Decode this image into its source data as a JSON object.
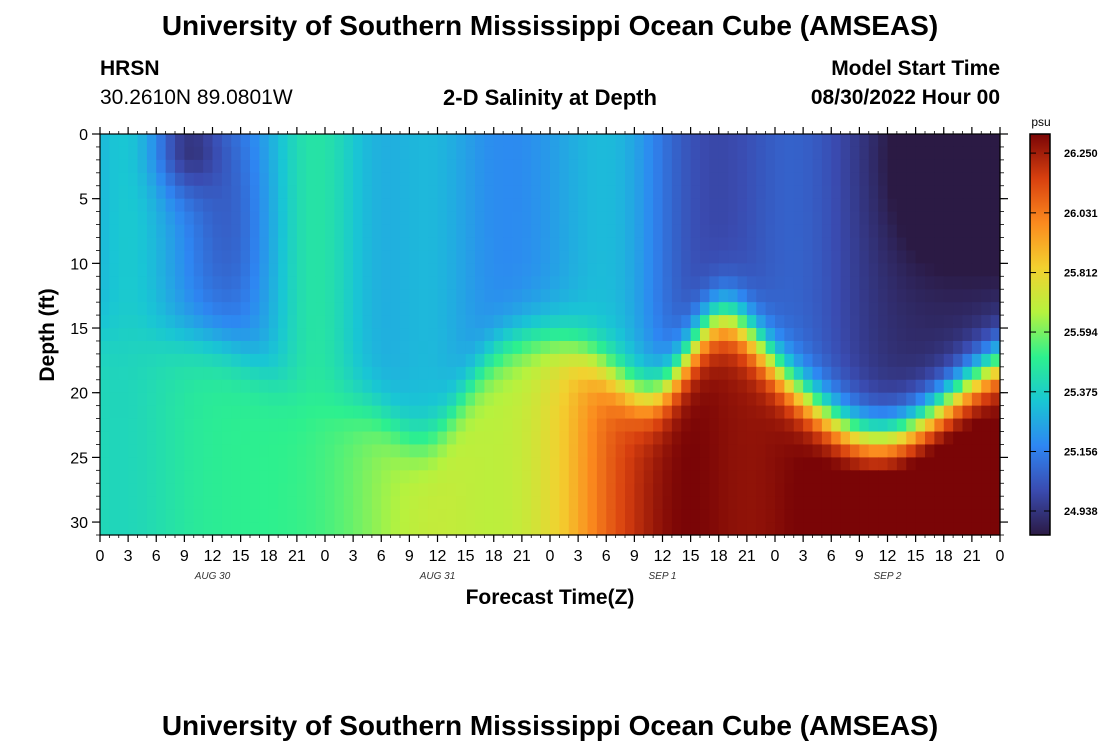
{
  "page": {
    "title_top": "University of Southern Mississippi Ocean Cube (AMSEAS)",
    "title_bottom": "University of Southern Mississippi Ocean Cube (AMSEAS)",
    "station": "HRSN",
    "coords": "30.2610N  89.0801W",
    "plot_title": "2-D Salinity at Depth",
    "model_start_label": "Model Start Time",
    "model_start_value": "08/30/2022 Hour 00"
  },
  "colors": {
    "colormap": [
      "#2b1a44",
      "#3a4bb0",
      "#2e86f2",
      "#19c6d4",
      "#2df08e",
      "#b6f23e",
      "#f3d12f",
      "#fb8a1e",
      "#d8400f",
      "#7a0506"
    ]
  },
  "chart_data": {
    "type": "heatmap",
    "title": "2-D Salinity at Depth",
    "xlabel": "Forecast Time(Z)",
    "ylabel": "Depth (ft)",
    "colorbar_unit": "psu",
    "x_ticks": [
      "0",
      "3",
      "6",
      "9",
      "12",
      "15",
      "18",
      "21",
      "0",
      "3",
      "6",
      "9",
      "12",
      "15",
      "18",
      "21",
      "0",
      "3",
      "6",
      "9",
      "12",
      "15",
      "18",
      "21",
      "0",
      "3",
      "6",
      "9",
      "12",
      "15",
      "18",
      "21",
      "0"
    ],
    "date_labels": [
      {
        "label": "AUG 30",
        "hour": 12
      },
      {
        "label": "AUG 31",
        "hour": 36
      },
      {
        "label": "SEP 1",
        "hour": 60
      },
      {
        "label": "SEP 2",
        "hour": 84
      }
    ],
    "xlim": [
      0,
      96
    ],
    "ylim": [
      0,
      31
    ],
    "y_ticks": [
      0,
      5,
      10,
      15,
      20,
      25,
      30
    ],
    "colorbar_ticks": [
      "26.250",
      "26.031",
      "25.812",
      "25.594",
      "25.375",
      "25.156",
      "24.938"
    ],
    "colorbar_tick_values": [
      26.25,
      26.031,
      25.812,
      25.594,
      25.375,
      25.156,
      24.938
    ],
    "vmin": 24.85,
    "vmax": 26.32,
    "grid": false
  }
}
